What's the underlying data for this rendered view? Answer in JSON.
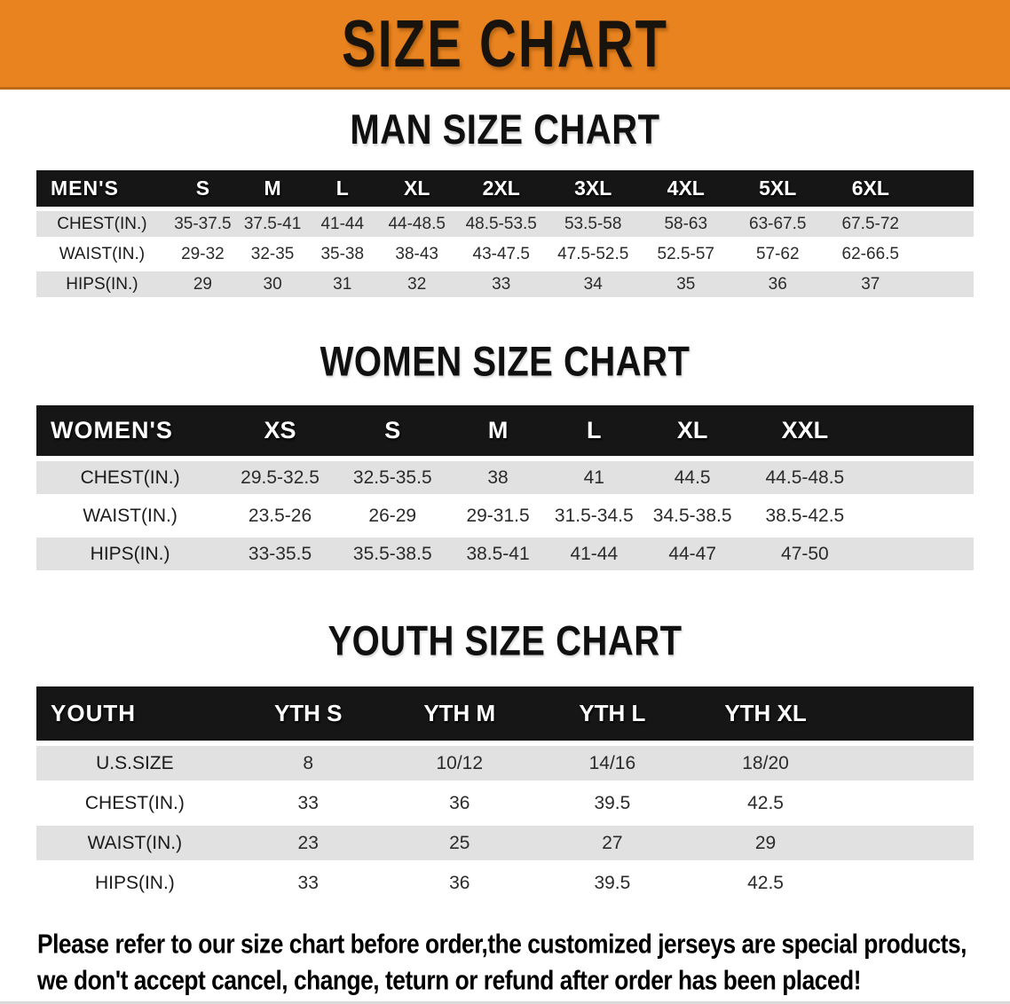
{
  "banner": {
    "title": "SIZE CHART",
    "bg_color": "#E9831F"
  },
  "colors": {
    "banner_orange": "#E9831F",
    "table_header_black": "#161616",
    "row_gray": "#E1E1E1",
    "note_red": "#C1272D"
  },
  "sections": [
    {
      "heading": "MAN SIZE CHART",
      "table": {
        "label": "MEN'S",
        "columns": [
          "S",
          "M",
          "L",
          "XL",
          "2XL",
          "3XL",
          "4XL",
          "5XL",
          "6XL"
        ],
        "rows": [
          {
            "label": "CHEST(IN.)",
            "values": [
              "35-37.5",
              "37.5-41",
              "41-44",
              "44-48.5",
              "48.5-53.5",
              "53.5-58",
              "58-63",
              "63-67.5",
              "67.5-72"
            ]
          },
          {
            "label": "WAIST(IN.)",
            "values": [
              "29-32",
              "32-35",
              "35-38",
              "38-43",
              "43-47.5",
              "47.5-52.5",
              "52.5-57",
              "57-62",
              "62-66.5"
            ]
          },
          {
            "label": "HIPS(IN.)",
            "values": [
              "29",
              "30",
              "31",
              "32",
              "33",
              "34",
              "35",
              "36",
              "37"
            ]
          }
        ]
      }
    },
    {
      "heading": "WOMEN SIZE CHART",
      "table": {
        "label": "WOMEN'S",
        "columns": [
          "XS",
          "S",
          "M",
          "L",
          "XL",
          "XXL"
        ],
        "rows": [
          {
            "label": "CHEST(IN.)",
            "values": [
              "29.5-32.5",
              "32.5-35.5",
              "38",
              "41",
              "44.5",
              "44.5-48.5"
            ]
          },
          {
            "label": "WAIST(IN.)",
            "values": [
              "23.5-26",
              "26-29",
              "29-31.5",
              "31.5-34.5",
              "34.5-38.5",
              "38.5-42.5"
            ]
          },
          {
            "label": "HIPS(IN.)",
            "values": [
              "33-35.5",
              "35.5-38.5",
              "38.5-41",
              "41-44",
              "44-47",
              "47-50"
            ]
          }
        ]
      }
    },
    {
      "heading": "YOUTH SIZE CHART",
      "table": {
        "label": "YOUTH",
        "columns": [
          "YTH S",
          "YTH M",
          "YTH L",
          "YTH XL"
        ],
        "rows": [
          {
            "label": "U.S.SIZE",
            "values": [
              "8",
              "10/12",
              "14/16",
              "18/20"
            ]
          },
          {
            "label": "CHEST(IN.)",
            "values": [
              "33",
              "36",
              "39.5",
              "42.5"
            ]
          },
          {
            "label": "WAIST(IN.)",
            "values": [
              "23",
              "25",
              "27",
              "29"
            ]
          },
          {
            "label": "HIPS(IN.)",
            "values": [
              "33",
              "36",
              "39.5",
              "42.5"
            ]
          }
        ]
      }
    }
  ],
  "footer": {
    "line1": "Please refer to our size chart before order,the customized jerseys are special products,",
    "line2": "we don't accept cancel, change, teturn or refund after order has been placed!"
  }
}
